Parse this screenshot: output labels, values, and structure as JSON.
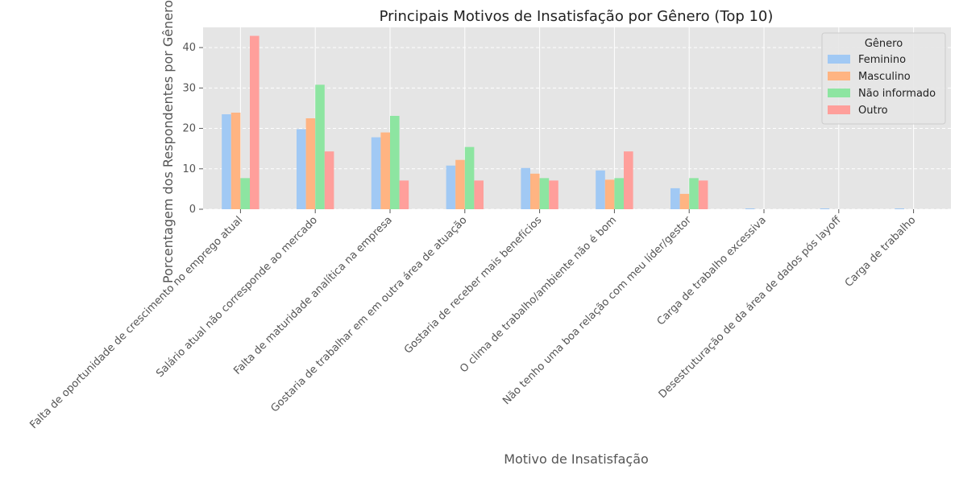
{
  "chart_data": {
    "type": "bar",
    "title": "Principais Motivos de Insatisfação por Gênero (Top 10)",
    "xlabel": "Motivo de Insatisfação",
    "ylabel": "Porcentagem dos Respondentes por Gênero",
    "ylim": [
      0,
      45
    ],
    "yticks": [
      0,
      10,
      20,
      30,
      40
    ],
    "grid": true,
    "legend": {
      "title": "Gênero",
      "position": "top-right"
    },
    "categories": [
      "Falta de oportunidade de crescimento no emprego atual",
      "Salário atual não corresponde ao mercado",
      "Falta de maturidade analítica na empresa",
      "Gostaria de trabalhar em em outra área de atuação",
      "Gostaria de receber mais benefícios",
      "O clima de trabalho/ambiente não é bom",
      "Não tenho uma boa relação com meu líder/gestor",
      "Carga de trabalho excessiva",
      "Desestruturação de da área de dados pós layoff",
      "Carga de trabalho"
    ],
    "series": [
      {
        "name": "Feminino",
        "color": "#a1c9f4",
        "values": [
          23.5,
          19.8,
          17.8,
          10.8,
          10.2,
          9.6,
          5.2,
          0.2,
          0.2,
          0.2
        ]
      },
      {
        "name": "Masculino",
        "color": "#ffb482",
        "values": [
          23.9,
          22.5,
          19.0,
          12.2,
          8.8,
          7.3,
          3.8,
          0.0,
          0.0,
          0.0
        ]
      },
      {
        "name": "Não informado",
        "color": "#8de5a1",
        "values": [
          7.7,
          30.8,
          23.1,
          15.4,
          7.7,
          7.7,
          7.7,
          0.0,
          0.0,
          0.0
        ]
      },
      {
        "name": "Outro",
        "color": "#ff9f9b",
        "values": [
          42.9,
          14.3,
          7.1,
          7.1,
          7.1,
          14.3,
          7.1,
          0.0,
          0.0,
          0.0
        ]
      }
    ]
  }
}
